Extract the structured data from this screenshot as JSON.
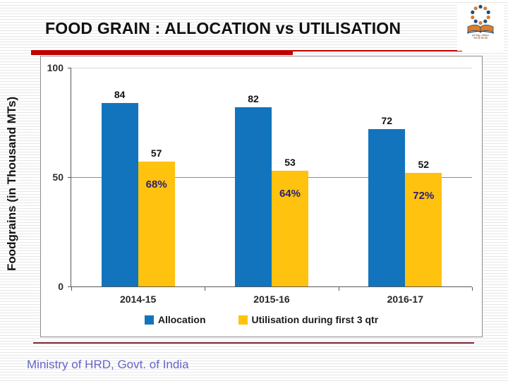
{
  "slide": {
    "title": "FOOD GRAIN : ALLOCATION vs UTILISATION",
    "footer": "Ministry of HRD, Govt. of India",
    "logo": {
      "name": "sarva-shiksha-abhiyan-emblem",
      "caption_line1": "सर्व शिक्षा अभियान",
      "caption_line2": "सब पढ़ें सब बढ़ें"
    },
    "accent_red": "#c00000",
    "footer_rule_color": "#7b2b3a"
  },
  "chart_data": {
    "type": "bar",
    "title": "",
    "ylabel": "Foodgrains (in Thousand MTs)",
    "xlabel": "",
    "categories": [
      "2014-15",
      "2015-16",
      "2016-17"
    ],
    "series": [
      {
        "name": "Allocation",
        "color": "#1274bc",
        "values": [
          84,
          82,
          72
        ]
      },
      {
        "name": "Utilisation during first 3 qtr",
        "color": "#ffc20e",
        "values": [
          57,
          53,
          52
        ]
      }
    ],
    "percent_labels": [
      "68%",
      "64%",
      "72%"
    ],
    "percent_label_color": "#2b2173",
    "yticks": [
      100,
      50,
      0
    ],
    "ylim": [
      0,
      100
    ],
    "grid": "horizontal",
    "legend_position": "bottom"
  }
}
